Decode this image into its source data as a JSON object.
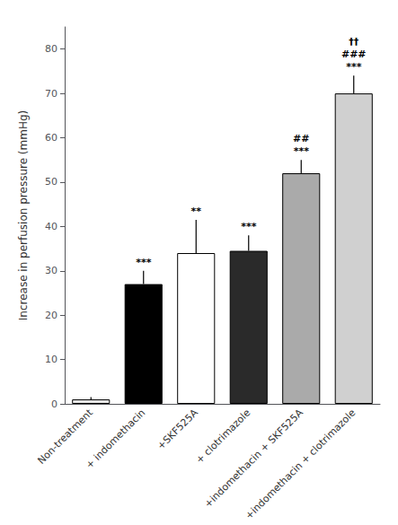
{
  "chart_data": {
    "type": "bar",
    "categories": [
      "Non-treatment",
      "+ indomethacin",
      "+SKF525A",
      "+ clotrimazole",
      "+indomethacin + SKF525A",
      "+indomethacin + clotrimazole"
    ],
    "values": [
      1.0,
      27.0,
      34.0,
      34.5,
      52.0,
      70.0
    ],
    "errors": [
      0.5,
      3.0,
      7.5,
      3.5,
      3.0,
      4.0
    ],
    "colors": [
      "#e8e8e8",
      "#000000",
      "#ffffff",
      "#2a2a2a",
      "#aaaaaa",
      "#d0d0d0"
    ],
    "ylabel": "Increase in perfusion pressure (mmHg)",
    "ylim": [
      0,
      85
    ],
    "yticks": [
      0,
      10,
      20,
      30,
      40,
      50,
      60,
      70,
      80
    ],
    "grid": false,
    "annotations": [
      [],
      [
        "***"
      ],
      [
        "**"
      ],
      [
        "***"
      ],
      [
        "***",
        "##"
      ],
      [
        "***",
        "###",
        "††"
      ]
    ]
  }
}
